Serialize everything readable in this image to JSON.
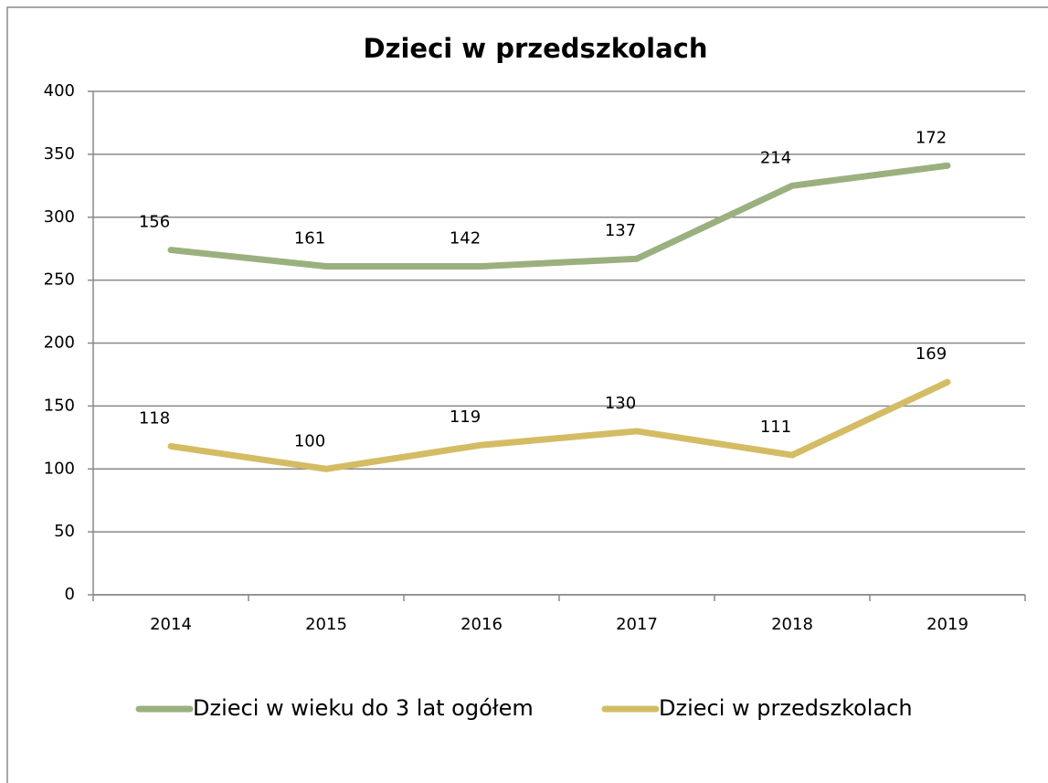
{
  "chart_data": {
    "type": "line",
    "stacked": true,
    "title": "Dzieci w przedszkolach",
    "categories": [
      "2014",
      "2015",
      "2016",
      "2017",
      "2018",
      "2019"
    ],
    "series": [
      {
        "name": "Dzieci w wieku do 3 lat ogółem",
        "color": "#9bb07f",
        "values": [
          156,
          161,
          142,
          137,
          214,
          172
        ]
      },
      {
        "name": "Dzieci w przedszkolach",
        "color": "#d4bc65",
        "values": [
          118,
          100,
          119,
          130,
          111,
          169
        ]
      }
    ],
    "ylim": [
      0,
      400
    ],
    "yticks": [
      0,
      50,
      100,
      150,
      200,
      250,
      300,
      350,
      400
    ],
    "grid": true,
    "legend": "bottom"
  }
}
